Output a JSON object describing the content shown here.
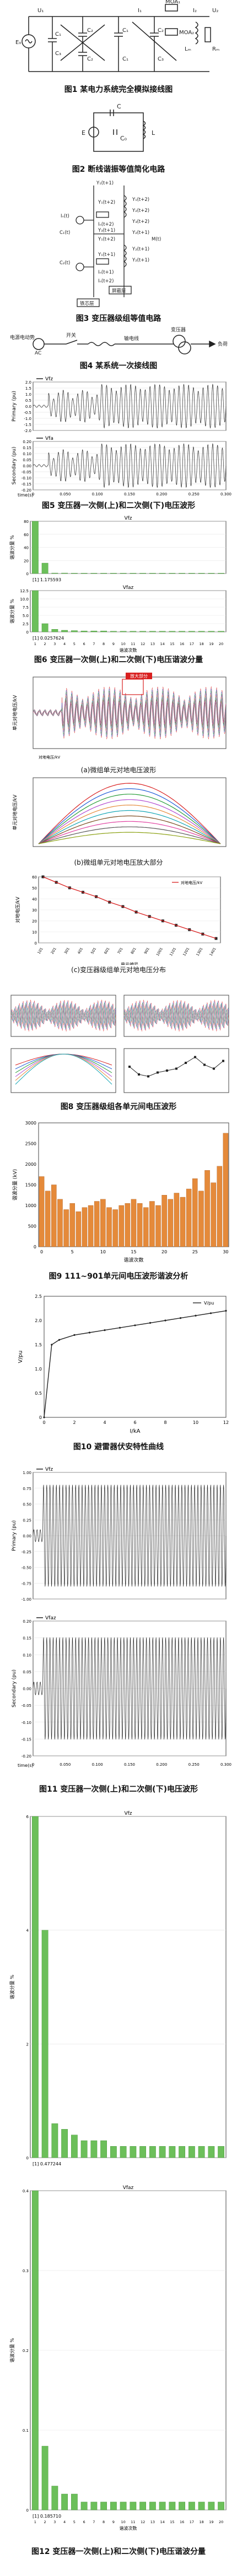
{
  "captions": {
    "fig1": "图1 某电力系统完全模拟接线图",
    "fig2": "图2 断线谐振等值简化电路",
    "fig3": "图3 变压器级组等值电路",
    "fig4": "图4 某系统一次接线图",
    "fig5": "图5 变压器一次侧(上)和二次侧(下)电压波形",
    "fig6": "图6 变压器一次侧(上)和二次侧(下)电压谐波分量",
    "fig7": "图7 变压器级组各单元对地电压波形",
    "fig8": "图8 变压器级组各单元间电压波形",
    "fig9": "图9 111~901单元间电压波形谐波分析",
    "fig10": "图10 避雷器伏安特性曲线",
    "fig11": "图11 变压器一次侧(上)和二次侧(下)电压波形",
    "fig12": "图12 变压器一次侧(上)和二次侧(下)电压谐波分量"
  },
  "fig1": {
    "labels": [
      "MOA₁",
      "C₁",
      "C₂",
      "C₁",
      "C₂",
      "MOA₂",
      "C₃",
      "C₂",
      "C₁",
      "C₃",
      "U₁",
      "U₂",
      "E₀",
      "I₁",
      "I₂",
      "Lₘ",
      "Rₘ"
    ]
  },
  "fig2": {
    "labels": [
      "C",
      "E",
      "L",
      "C₀"
    ]
  },
  "fig3": {
    "labels": [
      "Y₁(t+1)",
      "Y₁(t+2)",
      "Y₁(t+2)",
      "Y₂(t+2)",
      "Iₙ(t)",
      "Iₙ(t+2)",
      "Y₃(t+2)",
      "Y₃(t+1)",
      "Y₂(t+1)",
      "Y₁(t+2)",
      "Y₂(t+1)",
      "Y₂(t+1)",
      "M(t)",
      "C₁(t)",
      "C₂(t)",
      "Y₁(t+1)",
      "Iₙ(t+1)",
      "Iₙ(t+2)",
      "屏蔽层",
      "铁芯层"
    ]
  },
  "fig4": {
    "labels": [
      "电源电动势",
      "AC",
      "开关",
      "输电线",
      "变压器",
      "负荷"
    ]
  },
  "fig5": {
    "top": {
      "legend": "Vfz",
      "ylabel": "Primary (pu)",
      "yticks": [
        "2.0",
        "1.5",
        "1.0",
        "0.5",
        "0.0",
        "-0.5",
        "-1.0",
        "-1.5",
        "-2.0"
      ]
    },
    "bottom": {
      "legend": "Vfa",
      "ylabel": "Secondary (pu)",
      "yticks": [
        "0.20",
        "0.15",
        "0.10",
        "0.05",
        "0.00",
        "-0.05",
        "-0.10",
        "-0.15",
        "-0.20"
      ]
    },
    "xlabel": "time(s)",
    "xticks": [
      "0",
      "0.050",
      "0.100",
      "0.150",
      "0.200",
      "0.250",
      "0.300"
    ]
  },
  "fig6": {
    "top": {
      "title": "Vfz",
      "ylabel": "谐波分量 %",
      "yticks": [
        "80",
        "60",
        "40",
        "20",
        "0"
      ],
      "note": "[1] 1.175593"
    },
    "bottom": {
      "title": "Vfaz",
      "ylabel": "谐波分量 %",
      "yticks": [
        "12.5",
        "10.0",
        "7.5",
        "5.0",
        "2.5",
        "0"
      ],
      "note": "[1] 0.0257624"
    },
    "xlabel": "谐波次数",
    "xticks": [
      "1",
      "2",
      "3",
      "4",
      "5",
      "6",
      "7",
      "8",
      "9",
      "10",
      "11",
      "12",
      "13",
      "14",
      "15",
      "16",
      "17",
      "18",
      "19",
      "20"
    ]
  },
  "chart_data": [
    {
      "type": "bar",
      "title": "Vfz",
      "xlabel": "谐波次数",
      "ylabel": "谐波分量 %",
      "categories": [
        "1",
        "2",
        "3",
        "4",
        "5",
        "6",
        "7",
        "8",
        "9",
        "10",
        "11",
        "12",
        "13",
        "14",
        "15",
        "16",
        "17",
        "18",
        "19",
        "20"
      ],
      "values": [
        100,
        20,
        1,
        1,
        0.6,
        0.5,
        0.5,
        0.4,
        0.3,
        0.3,
        0.3,
        0.2,
        0.2,
        0.2,
        0.2,
        0.2,
        0.2,
        0.2,
        0.2,
        0.2
      ],
      "ylim": [
        0,
        100
      ]
    },
    {
      "type": "bar",
      "title": "Vfaz",
      "xlabel": "谐波次数",
      "ylabel": "谐波分量 %",
      "categories": [
        "1",
        "2",
        "3",
        "4",
        "5",
        "6",
        "7",
        "8",
        "9",
        "10",
        "11",
        "12",
        "13",
        "14",
        "15",
        "16",
        "17",
        "18",
        "19",
        "20"
      ],
      "values": [
        12.5,
        2.5,
        0.8,
        0.5,
        0.4,
        0.3,
        0.3,
        0.3,
        0.2,
        0.2,
        0.2,
        0.2,
        0.2,
        0.2,
        0.2,
        0.2,
        0.2,
        0.2,
        0.2,
        0.2
      ],
      "ylim": [
        0,
        12.5
      ]
    },
    {
      "type": "line",
      "title": "",
      "xlabel": "单元编号",
      "ylabel": "对地电压/kV",
      "legend": "对地电压/kV",
      "x": [
        "101",
        "201",
        "301",
        "401",
        "501",
        "601",
        "701",
        "801",
        "901",
        "1001",
        "1101",
        "1201",
        "1301",
        "1401"
      ],
      "values": [
        60,
        55,
        50,
        46,
        42,
        37,
        33,
        28,
        24,
        20,
        16,
        12,
        8,
        4
      ],
      "ylim": [
        0,
        60
      ]
    },
    {
      "type": "bar",
      "title": "",
      "xlabel": "谐波次数",
      "ylabel": "谐波分量 (kV)",
      "categories": [
        "0",
        "1",
        "2",
        "3",
        "4",
        "5",
        "6",
        "7",
        "8",
        "9",
        "10",
        "11",
        "12",
        "13",
        "14",
        "15",
        "16",
        "17",
        "18",
        "19",
        "20",
        "21",
        "22",
        "23",
        "24",
        "25",
        "26",
        "27",
        "28",
        "29",
        "30"
      ],
      "values": [
        1700,
        1350,
        1500,
        1150,
        900,
        1050,
        850,
        950,
        1000,
        1100,
        1150,
        950,
        900,
        1000,
        1050,
        1150,
        1050,
        950,
        1100,
        1000,
        1250,
        1150,
        1300,
        1200,
        1400,
        1650,
        1350,
        1850,
        1550,
        1950,
        2750
      ],
      "ylim": [
        0,
        3000
      ]
    },
    {
      "type": "line",
      "title": "",
      "xlabel": "I/kA",
      "ylabel": "V/pu",
      "legend": "V/pu",
      "x": [
        0,
        0.5,
        1,
        2,
        3,
        4,
        5,
        6,
        7,
        8,
        9,
        10,
        11,
        12
      ],
      "values": [
        0,
        1.5,
        1.6,
        1.7,
        1.75,
        1.8,
        1.85,
        1.9,
        1.95,
        2.0,
        2.05,
        2.1,
        2.15,
        2.2
      ],
      "ylim": [
        0,
        2.5
      ]
    },
    {
      "type": "bar",
      "title": "Vfz",
      "xlabel": "谐波次数",
      "ylabel": "谐波分量 %",
      "categories": [
        "1",
        "2",
        "3",
        "4",
        "5",
        "6",
        "7",
        "8",
        "9",
        "10",
        "11",
        "12",
        "13",
        "14",
        "15",
        "16",
        "17",
        "18",
        "19",
        "20"
      ],
      "values": [
        6,
        4,
        0.6,
        0.5,
        0.4,
        0.3,
        0.3,
        0.3,
        0.2,
        0.2,
        0.2,
        0.2,
        0.2,
        0.2,
        0.2,
        0.2,
        0.2,
        0.2,
        0.2,
        0.2
      ],
      "ylim": [
        0,
        6
      ]
    },
    {
      "type": "bar",
      "title": "Vfaz",
      "xlabel": "谐波次数",
      "ylabel": "谐波分量 %",
      "categories": [
        "1",
        "2",
        "3",
        "4",
        "5",
        "6",
        "7",
        "8",
        "9",
        "10",
        "11",
        "12",
        "13",
        "14",
        "15",
        "16",
        "17",
        "18",
        "19",
        "20"
      ],
      "values": [
        0.4,
        0.08,
        0.03,
        0.02,
        0.02,
        0.01,
        0.01,
        0.01,
        0.01,
        0.01,
        0.01,
        0.01,
        0.01,
        0.01,
        0.01,
        0.01,
        0.01,
        0.01,
        0.01,
        0.01
      ],
      "ylim": [
        0,
        0.4
      ]
    }
  ],
  "fig7": {
    "a": {
      "ylabel": "单元对地电压/kV",
      "badge": "放大部分",
      "sub": "(a)微组单元对地电压波形",
      "legend": "对地电压/kV"
    },
    "b": {
      "ylabel": "单元对地电压/kV",
      "sub": "(b)微组单元对地电压放大部分"
    },
    "c": {
      "ylabel": "对地电压/kV",
      "xlabel": "单元编号",
      "sub": "(c)变压器级组单元对地电压分布",
      "legend": "对地电压/kV",
      "xticks": [
        "101",
        "201",
        "301",
        "401",
        "501",
        "601",
        "701",
        "801",
        "901",
        "1001",
        "1101",
        "1201",
        "1301",
        "1401"
      ],
      "yticks": [
        "60",
        "50",
        "40",
        "30",
        "20",
        "10",
        "0"
      ]
    }
  },
  "fig9": {
    "xlabel": "谐波次数",
    "ylabel": "谐波分量 (kV)",
    "yticks": [
      "3000",
      "2500",
      "2000",
      "1500",
      "1000",
      "500",
      "0"
    ],
    "xticks": [
      "0",
      "5",
      "10",
      "15",
      "20",
      "25",
      "30"
    ]
  },
  "fig10": {
    "xlabel": "I/kA",
    "ylabel": "V/pu",
    "legend": "V/pu",
    "yticks": [
      "2.5",
      "2.0",
      "1.5",
      "1.0",
      "0.5",
      "0"
    ],
    "xticks": [
      "0",
      "2",
      "4",
      "6",
      "8",
      "10",
      "12"
    ]
  },
  "fig11": {
    "top": {
      "legend": "Vfz",
      "ylabel": "Primary (pu)",
      "yticks": [
        "1.00",
        "0.75",
        "0.50",
        "0.25",
        "0.00",
        "-0.25",
        "-0.50",
        "-0.75",
        "-1.00"
      ]
    },
    "bottom": {
      "legend": "Vfaz",
      "ylabel": "Secondary (pu)",
      "yticks": [
        "0.20",
        "0.15",
        "0.10",
        "0.05",
        "0.00",
        "-0.05",
        "-0.10",
        "-0.15",
        "-0.20"
      ]
    },
    "xlabel": "time(s)",
    "xticks": [
      "0",
      "0.050",
      "0.100",
      "0.150",
      "0.200",
      "0.250",
      "0.300"
    ]
  },
  "fig12": {
    "top": {
      "title": "Vfz",
      "ylabel": "谐波分量 %",
      "yticks": [
        "6",
        "4",
        "2",
        "0"
      ],
      "note": "[1] 0.477244"
    },
    "bottom": {
      "title": "Vfaz",
      "ylabel": "谐波分量 %",
      "yticks": [
        "0.4",
        "0.3",
        "0.2",
        "0.1",
        "0"
      ],
      "note": "[1] 0.185710"
    },
    "xlabel": "谐波次数"
  },
  "colors": {
    "bar": "#6cbf5a",
    "orange": "#e58a3a",
    "wave": "#222222",
    "accent": "#d92020"
  }
}
